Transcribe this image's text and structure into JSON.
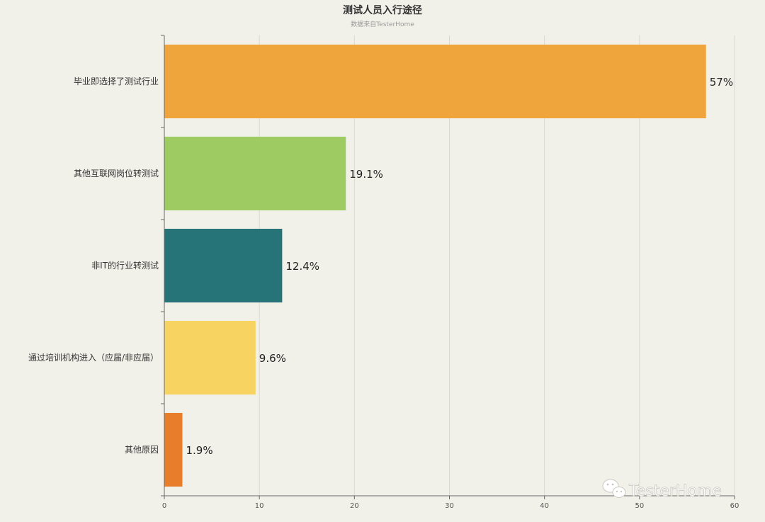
{
  "chart_data": {
    "type": "bar",
    "orientation": "horizontal",
    "title": "测试人员入行途径",
    "subtitle": "数据来自TesterHome",
    "categories": [
      "毕业即选择了测试行业",
      "其他互联网岗位转测试",
      "非IT的行业转测试",
      "通过培训机构进入（应届/非应届）",
      "其他原因"
    ],
    "values": [
      57,
      19.1,
      12.4,
      9.6,
      1.9
    ],
    "data_labels": [
      "57%",
      "19.1%",
      "12.4%",
      "9.6%",
      "1.9%"
    ],
    "colors": [
      "#f0a53c",
      "#9ecb62",
      "#277478",
      "#f7d462",
      "#e87e2b"
    ],
    "xlim": [
      0,
      60
    ],
    "xticks": [
      "0",
      "10",
      "20",
      "30",
      "40",
      "50",
      "60"
    ],
    "grid": true,
    "legend": "none"
  },
  "watermark": {
    "text": "TesterHome",
    "icon": "wechat-icon"
  }
}
